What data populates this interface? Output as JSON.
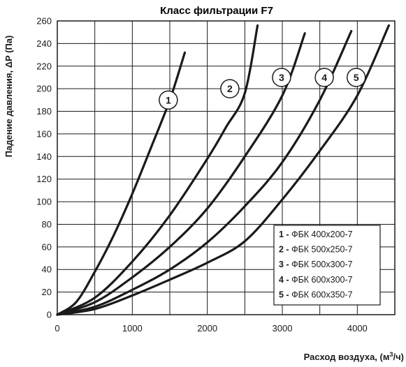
{
  "chart_data": {
    "type": "line",
    "title": "Класс фильтрации F7",
    "xlabel": "Расход воздуха, (м³/ч)",
    "ylabel": "Падение давления, ΔP (Па)",
    "xlim": [
      0,
      4500
    ],
    "ylim": [
      0,
      260
    ],
    "xticks": [
      0,
      1000,
      2000,
      3000,
      4000
    ],
    "yticks": [
      0,
      20,
      40,
      60,
      80,
      100,
      120,
      140,
      160,
      180,
      200,
      220,
      240,
      260
    ],
    "grid": true,
    "legend_position": "bottom-right",
    "line_color": "#1a1a1a",
    "series": [
      {
        "marker": "1",
        "legend_num": "1",
        "legend_label": "ФБК 400х200-7",
        "x": [
          0,
          250,
          500,
          750,
          1000,
          1250,
          1500,
          1700
        ],
        "y": [
          0,
          11,
          38,
          70,
          107,
          148,
          190,
          232
        ]
      },
      {
        "marker": "2",
        "legend_num": "2",
        "legend_label": "ФБК 500х250-7",
        "x": [
          0,
          500,
          1000,
          1500,
          2000,
          2250,
          2500,
          2670
        ],
        "y": [
          0,
          15,
          47,
          88,
          138,
          166,
          196,
          256
        ]
      },
      {
        "marker": "3",
        "legend_num": "3",
        "legend_label": "ФБК 500х300-7",
        "x": [
          0,
          500,
          1000,
          1500,
          2000,
          2500,
          3000,
          3300
        ],
        "y": [
          0,
          11,
          33,
          60,
          94,
          140,
          194,
          249
        ]
      },
      {
        "marker": "4",
        "legend_num": "4",
        "legend_label": "ФБК 600х300-7",
        "x": [
          0,
          500,
          1000,
          1500,
          2000,
          2500,
          3000,
          3500,
          3920
        ],
        "y": [
          0,
          7,
          22,
          40,
          64,
          96,
          135,
          190,
          251
        ]
      },
      {
        "marker": "5",
        "legend_num": "5",
        "legend_label": "ФБК 600х350-7",
        "x": [
          0,
          500,
          1000,
          1500,
          2000,
          2500,
          3000,
          3500,
          4000,
          4420
        ],
        "y": [
          0,
          5,
          17,
          31,
          46,
          65,
          102,
          145,
          194,
          256
        ]
      }
    ],
    "markers_on_curves": [
      {
        "label": "1",
        "x": 1480,
        "y": 190
      },
      {
        "label": "2",
        "x": 2300,
        "y": 200
      },
      {
        "label": "3",
        "x": 2990,
        "y": 210
      },
      {
        "label": "4",
        "x": 3560,
        "y": 210
      },
      {
        "label": "5",
        "x": 3985,
        "y": 210
      }
    ]
  }
}
